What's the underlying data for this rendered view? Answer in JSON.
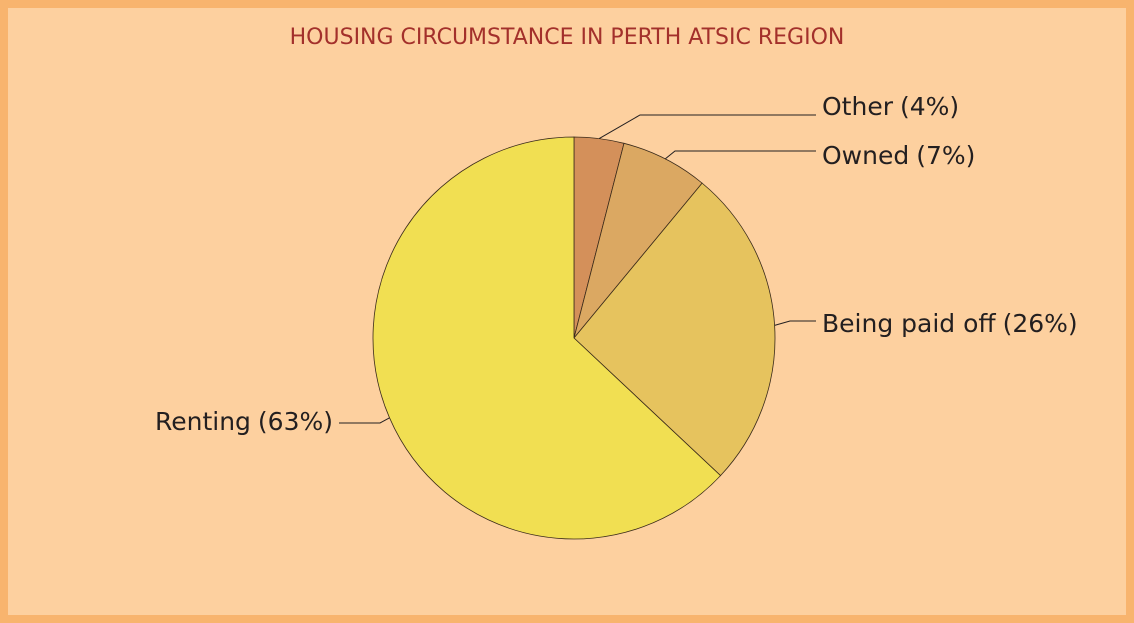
{
  "chart_data": {
    "type": "pie",
    "title": "HOUSING CIRCUMSTANCE IN PERTH ATSIC REGION",
    "categories": [
      "Other",
      "Owned",
      "Being paid off",
      "Renting"
    ],
    "values": [
      4,
      7,
      26,
      63
    ],
    "value_labels": [
      "(4%)",
      "(7%)",
      "(26%)",
      "(63%)"
    ],
    "colors": [
      "#d4905a",
      "#dba862",
      "#e6c35e",
      "#f1df52"
    ]
  }
}
